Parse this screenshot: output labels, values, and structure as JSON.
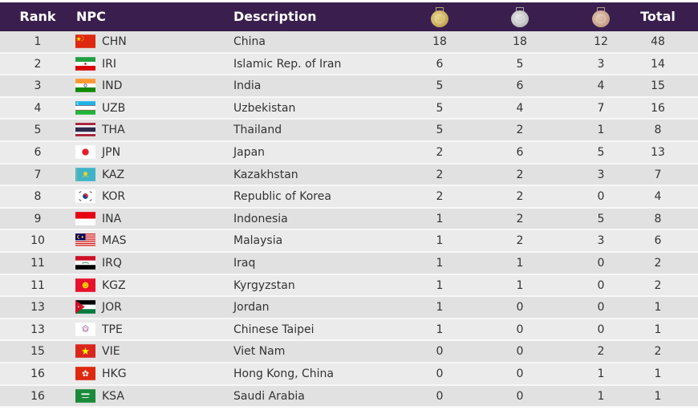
{
  "header": {
    "rank": "Rank",
    "npc": "NPC",
    "description": "Description",
    "gold_icon": "gold-medal-icon",
    "silver_icon": "silver-medal-icon",
    "bronze_icon": "bronze-medal-icon",
    "total": "Total"
  },
  "colors": {
    "header_bg": "#3a1f4e",
    "row_odd": "#e1e1e1",
    "row_even": "#ebebeb",
    "text": "#333333"
  },
  "rows": [
    {
      "rank": "1",
      "code": "CHN",
      "flag": "china-flag-icon",
      "desc": "China",
      "gold": "18",
      "silver": "18",
      "bronze": "12",
      "total": "48"
    },
    {
      "rank": "2",
      "code": "IRI",
      "flag": "iran-flag-icon",
      "desc": "Islamic Rep. of Iran",
      "gold": "6",
      "silver": "5",
      "bronze": "3",
      "total": "14"
    },
    {
      "rank": "3",
      "code": "IND",
      "flag": "india-flag-icon",
      "desc": "India",
      "gold": "5",
      "silver": "6",
      "bronze": "4",
      "total": "15"
    },
    {
      "rank": "4",
      "code": "UZB",
      "flag": "uzbekistan-flag-icon",
      "desc": "Uzbekistan",
      "gold": "5",
      "silver": "4",
      "bronze": "7",
      "total": "16"
    },
    {
      "rank": "5",
      "code": "THA",
      "flag": "thailand-flag-icon",
      "desc": "Thailand",
      "gold": "5",
      "silver": "2",
      "bronze": "1",
      "total": "8"
    },
    {
      "rank": "6",
      "code": "JPN",
      "flag": "japan-flag-icon",
      "desc": "Japan",
      "gold": "2",
      "silver": "6",
      "bronze": "5",
      "total": "13"
    },
    {
      "rank": "7",
      "code": "KAZ",
      "flag": "kazakhstan-flag-icon",
      "desc": "Kazakhstan",
      "gold": "2",
      "silver": "2",
      "bronze": "3",
      "total": "7"
    },
    {
      "rank": "8",
      "code": "KOR",
      "flag": "korea-flag-icon",
      "desc": "Republic of Korea",
      "gold": "2",
      "silver": "2",
      "bronze": "0",
      "total": "4"
    },
    {
      "rank": "9",
      "code": "INA",
      "flag": "indonesia-flag-icon",
      "desc": "Indonesia",
      "gold": "1",
      "silver": "2",
      "bronze": "5",
      "total": "8"
    },
    {
      "rank": "10",
      "code": "MAS",
      "flag": "malaysia-flag-icon",
      "desc": "Malaysia",
      "gold": "1",
      "silver": "2",
      "bronze": "3",
      "total": "6"
    },
    {
      "rank": "11",
      "code": "IRQ",
      "flag": "iraq-flag-icon",
      "desc": "Iraq",
      "gold": "1",
      "silver": "1",
      "bronze": "0",
      "total": "2"
    },
    {
      "rank": "11",
      "code": "KGZ",
      "flag": "kyrgyzstan-flag-icon",
      "desc": "Kyrgyzstan",
      "gold": "1",
      "silver": "1",
      "bronze": "0",
      "total": "2"
    },
    {
      "rank": "13",
      "code": "JOR",
      "flag": "jordan-flag-icon",
      "desc": "Jordan",
      "gold": "1",
      "silver": "0",
      "bronze": "0",
      "total": "1"
    },
    {
      "rank": "13",
      "code": "TPE",
      "flag": "chinese-taipei-flag-icon",
      "desc": "Chinese Taipei",
      "gold": "1",
      "silver": "0",
      "bronze": "0",
      "total": "1"
    },
    {
      "rank": "15",
      "code": "VIE",
      "flag": "vietnam-flag-icon",
      "desc": "Viet Nam",
      "gold": "0",
      "silver": "0",
      "bronze": "2",
      "total": "2"
    },
    {
      "rank": "16",
      "code": "HKG",
      "flag": "hong-kong-flag-icon",
      "desc": "Hong Kong, China",
      "gold": "0",
      "silver": "0",
      "bronze": "1",
      "total": "1"
    },
    {
      "rank": "16",
      "code": "KSA",
      "flag": "saudi-arabia-flag-icon",
      "desc": "Saudi Arabia",
      "gold": "0",
      "silver": "0",
      "bronze": "1",
      "total": "1"
    }
  ]
}
